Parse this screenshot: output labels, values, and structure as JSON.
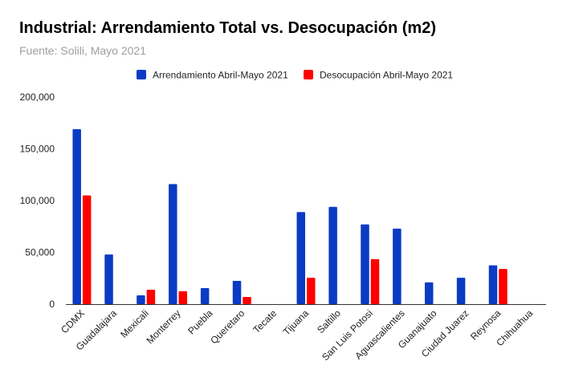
{
  "chart_data": {
    "type": "bar",
    "title": "Industrial: Arrendamiento Total vs. Desocupación (m2)",
    "subtitle": "Fuente: Solili, Mayo 2021",
    "xlabel": "",
    "ylabel": "",
    "categories": [
      "CDMX",
      "Guadalajara",
      "Mexicali",
      "Monterrey",
      "Puebla",
      "Queretaro",
      "Tecate",
      "Tijuana",
      "Saltillo",
      "San Luis Potosi",
      "Aguascalientes",
      "Guanajuato",
      "Ciudad Juarez",
      "Reynosa",
      "Chihuahua"
    ],
    "series": [
      {
        "name": "Arrendamiento Abril-Mayo 2021",
        "color": "#0b3bc4",
        "values": [
          169000,
          48000,
          8500,
          116000,
          15500,
          22500,
          0,
          89000,
          94000,
          77000,
          73000,
          21000,
          25500,
          37500,
          0
        ]
      },
      {
        "name": "Desocupación Abril-Mayo 2021",
        "color": "#ff0000",
        "values": [
          105000,
          0,
          14000,
          12500,
          0,
          7000,
          0,
          25500,
          0,
          43500,
          0,
          0,
          0,
          34000,
          0
        ]
      }
    ],
    "ylim": [
      0,
      200000
    ],
    "yticks": [
      0,
      50000,
      100000,
      150000,
      200000
    ],
    "ytick_labels": [
      "0",
      "50,000",
      "100,000",
      "150,000",
      "200,000"
    ],
    "grid": false,
    "legend_position": "top"
  }
}
